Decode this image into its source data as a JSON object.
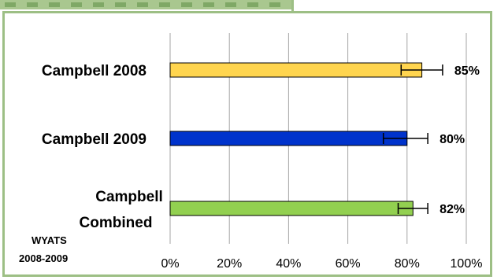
{
  "colors": {
    "background": "#ffffff",
    "frame": "#9dbf85",
    "grid": "#a6a6a6"
  },
  "footnote": {
    "line1": "WYATS",
    "line2": "2008-2009"
  },
  "chart_data": {
    "type": "bar",
    "orientation": "horizontal",
    "categories": [
      [
        "Campbell 2008"
      ],
      [
        "Campbell 2009"
      ],
      [
        "Campbell",
        "Combined"
      ]
    ],
    "values": [
      85,
      80,
      82
    ],
    "error_low": [
      78,
      72,
      77
    ],
    "error_high": [
      92,
      87,
      87
    ],
    "data_labels": [
      "85%",
      "80%",
      "82%"
    ],
    "bar_colors": [
      "#ffd54f",
      "#0033cc",
      "#92d050"
    ],
    "xlim": [
      0,
      100
    ],
    "xticks": [
      0,
      20,
      40,
      60,
      80,
      100
    ],
    "xtick_labels": [
      "0%",
      "20%",
      "40%",
      "60%",
      "80%",
      "100%"
    ],
    "grid": true
  }
}
